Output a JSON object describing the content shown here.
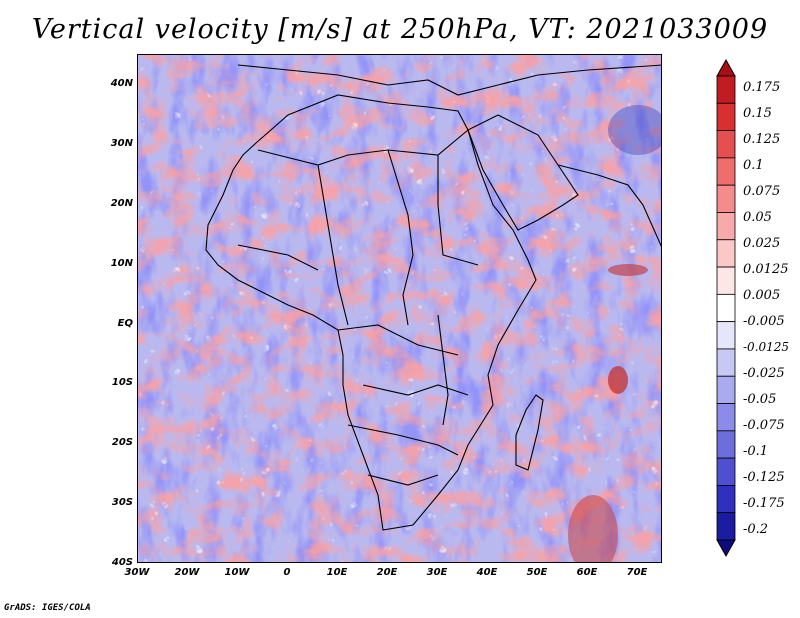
{
  "title": "Vertical velocity [m/s] at 250hPa, VT: 2021033009",
  "latitude_labels": [
    "40N",
    "30N",
    "20N",
    "10N",
    "EQ",
    "10S",
    "20S",
    "30S",
    "40S"
  ],
  "longitude_labels": [
    "30W",
    "20W",
    "10W",
    "0",
    "10E",
    "20E",
    "30E",
    "40E",
    "50E",
    "60E",
    "70E"
  ],
  "colorbar": {
    "levels": [
      "0.175",
      "0.15",
      "0.125",
      "0.1",
      "0.075",
      "0.05",
      "0.025",
      "0.0125",
      "0.005",
      "-0.005",
      "-0.0125",
      "-0.025",
      "-0.05",
      "-0.075",
      "-0.1",
      "-0.125",
      "-0.175",
      "-0.2"
    ],
    "colors": [
      "#a50f15",
      "#c01c22",
      "#d83030",
      "#e64f4f",
      "#ee6d6d",
      "#f48c8c",
      "#f8aaaa",
      "#fbc8c8",
      "#fde6e6",
      "#ffffff",
      "#e6e6fb",
      "#c8c8f5",
      "#aaaaef",
      "#8c8ce8",
      "#6d6ddc",
      "#4f4fd0",
      "#3030bc",
      "#1c1ca0",
      "#0c0c80"
    ]
  },
  "footer": "GrADS: IGES/COLA"
}
